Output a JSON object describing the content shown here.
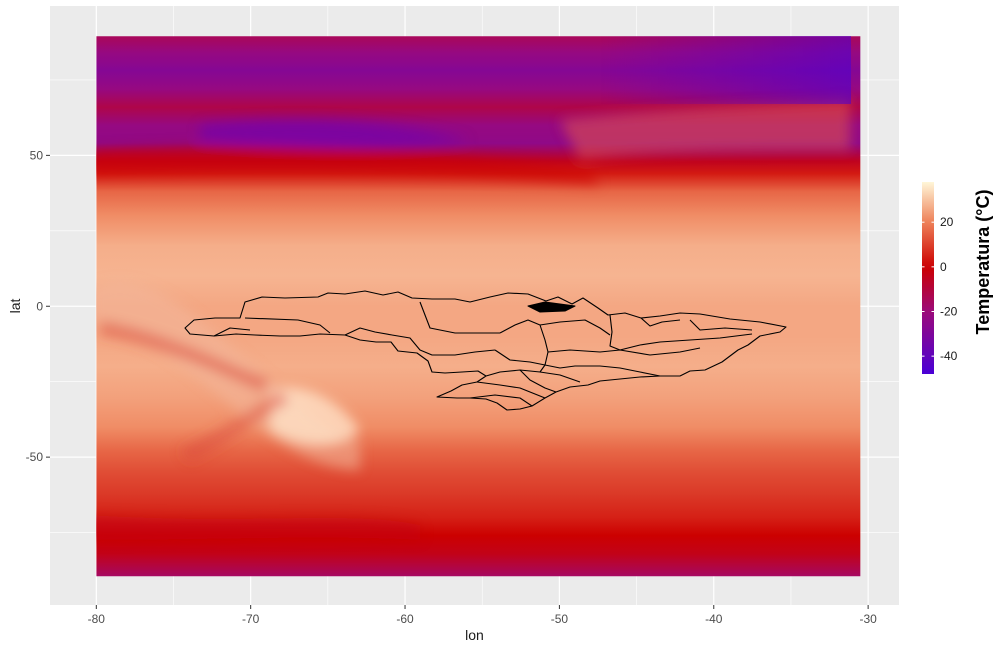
{
  "chart_data": {
    "type": "heatmap",
    "title": "",
    "xlabel": "lon",
    "ylabel": "lat",
    "xlim": [
      -83.0,
      -28.0
    ],
    "ylim": [
      -99.0,
      99.5
    ],
    "x_ticks": [
      -80,
      -70,
      -60,
      -50,
      -40,
      -30
    ],
    "y_ticks": [
      -50,
      0,
      50
    ],
    "grid": true,
    "raster_extent": {
      "lon": [
        -80,
        -30.5
      ],
      "lat": [
        -89.5,
        89.5
      ]
    },
    "legend": {
      "title": "Temperatura (°C)",
      "position": "right",
      "ticks": [
        20,
        0,
        -20,
        -40
      ],
      "range": [
        -48,
        38
      ]
    },
    "colorscale": [
      {
        "value": -48,
        "color": "#4a00d6"
      },
      {
        "value": -20,
        "color": "#9c0a7a"
      },
      {
        "value": 0,
        "color": "#cc0000"
      },
      {
        "value": 20,
        "color": "#ee8058"
      },
      {
        "value": 38,
        "color": "#fff6d8"
      }
    ],
    "zones": [
      {
        "lat": 89,
        "value": -15
      },
      {
        "lat": 84,
        "value": -22
      },
      {
        "lat": 78,
        "value": -28
      },
      {
        "lat": 72,
        "value": -22
      },
      {
        "lat": 66,
        "value": -12
      },
      {
        "lat": 60,
        "value": -22
      },
      {
        "lat": 54,
        "value": -24
      },
      {
        "lat": 48,
        "value": -5
      },
      {
        "lat": 44,
        "value": 4
      },
      {
        "lat": 38,
        "value": 16
      },
      {
        "lat": 30,
        "value": 22
      },
      {
        "lat": 20,
        "value": 27
      },
      {
        "lat": 10,
        "value": 28
      },
      {
        "lat": 0,
        "value": 26
      },
      {
        "lat": -10,
        "value": 26
      },
      {
        "lat": -20,
        "value": 27
      },
      {
        "lat": -30,
        "value": 25
      },
      {
        "lat": -40,
        "value": 22
      },
      {
        "lat": -48,
        "value": 16
      },
      {
        "lat": -55,
        "value": 12
      },
      {
        "lat": -62,
        "value": 9
      },
      {
        "lat": -70,
        "value": 5
      },
      {
        "lat": -76,
        "value": 0
      },
      {
        "lat": -82,
        "value": -4
      },
      {
        "lat": -87,
        "value": -12
      },
      {
        "lat": -89.5,
        "value": -16
      }
    ],
    "overlay": "Brazil state boundaries (outline)"
  }
}
